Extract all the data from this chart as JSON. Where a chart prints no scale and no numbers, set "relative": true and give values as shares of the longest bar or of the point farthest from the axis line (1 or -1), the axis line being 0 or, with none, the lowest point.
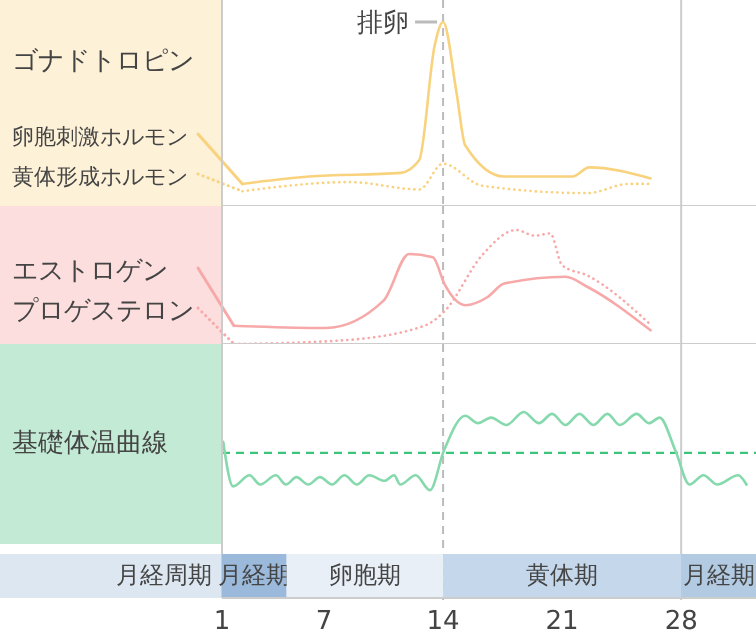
{
  "chart_data": [
    {
      "type": "line",
      "title": "ゴナドトロピン",
      "relative": true,
      "xlim": [
        1,
        32.4
      ],
      "tick_labels": false,
      "legend": "left",
      "marker": "none",
      "series": [
        {
          "name": "卵胞刺激ホルモン",
          "color": "#f9d27e",
          "line_style": "solid",
          "x": [
            2.2,
            6.1,
            11.5,
            12.6,
            13.5,
            14,
            14.8,
            15.3,
            17.6,
            21.6,
            22.6,
            26.2
          ],
          "values": [
            0.12,
            0.16,
            0.18,
            0.25,
            0.87,
            1,
            0.61,
            0.33,
            0.16,
            0.16,
            0.21,
            0.15
          ]
        },
        {
          "name": "黄体形成ホルモン",
          "color": "#f9d27e",
          "line_style": "dotted",
          "x": [
            2.2,
            8.5,
            12.6,
            14,
            16.3,
            22.5,
            24.9,
            26.2
          ],
          "values": [
            0.08,
            0.13,
            0.09,
            0.23,
            0.11,
            0.07,
            0.12,
            0.12
          ]
        }
      ],
      "ref_lines": [
        {
          "axis": "x",
          "value": 14,
          "label": "排卵",
          "color": "#bbbbbb",
          "line_style": "dashed"
        },
        {
          "axis": "x",
          "value": 28,
          "color": "#cccccc",
          "line_style": "solid"
        }
      ]
    },
    {
      "type": "line",
      "relative": true,
      "xlim": [
        1,
        32.4
      ],
      "tick_labels": false,
      "legend": "left",
      "marker": "none",
      "series": [
        {
          "name": "エストロゲン",
          "color": "#f7a9a9",
          "line_style": "solid",
          "x": [
            1.7,
            7.1,
            10.5,
            12,
            13.4,
            14.1,
            15.3,
            16.6,
            17.6,
            21.2,
            22.5,
            26.2
          ],
          "values": [
            0.16,
            0.14,
            0.38,
            0.79,
            0.76,
            0.52,
            0.34,
            0.41,
            0.53,
            0.59,
            0.5,
            0.12
          ]
        },
        {
          "name": "プロゲステロン",
          "color": "#f7a9a9",
          "line_style": "dotted",
          "x": [
            1.7,
            7.9,
            12.9,
            14.1,
            16.3,
            18.3,
            19.4,
            20.3,
            21,
            22.5,
            26.2
          ],
          "values": [
            0,
            0.03,
            0.16,
            0.29,
            0.78,
            1,
            0.95,
            0.97,
            0.69,
            0.6,
            0.17
          ]
        }
      ],
      "ref_lines": [
        {
          "axis": "x",
          "value": 14,
          "color": "#bbbbbb",
          "line_style": "dashed"
        },
        {
          "axis": "x",
          "value": 28,
          "color": "#cccccc",
          "line_style": "solid"
        }
      ]
    },
    {
      "type": "line",
      "title": "基礎体温曲線",
      "xlabel": "月経周期",
      "relative": true,
      "xlim": [
        1,
        32.4
      ],
      "xticks": [
        1,
        7,
        14,
        21,
        28
      ],
      "tick_labels": "x",
      "legend": false,
      "marker": "none",
      "series": [
        {
          "color": "#86d9ad",
          "line_style": "solid",
          "x": [
            1.07,
            1.65,
            2.62,
            3.24,
            4.17,
            4.76,
            5.38,
            6.07,
            6.76,
            7.47,
            8.2,
            8.93,
            9.66,
            10.57,
            11.12,
            11.48,
            12.39,
            13.23,
            14.04,
            15.3,
            16.05,
            16.82,
            17.72,
            18.74,
            19.64,
            20.41,
            21.2,
            22.02,
            22.84,
            23.66,
            24.4,
            25.38,
            26.12,
            26.73,
            27.67,
            28.49,
            29.31,
            30.12,
            31.35,
            31.84
          ],
          "values": [
            0.84,
            0.6,
            0.66,
            0.61,
            0.66,
            0.61,
            0.65,
            0.61,
            0.65,
            0.61,
            0.66,
            0.61,
            0.66,
            0.63,
            0.66,
            0.61,
            0.66,
            0.58,
            0.79,
            0.98,
            0.94,
            0.97,
            0.93,
            1,
            0.94,
            0.99,
            0.93,
            0.99,
            0.93,
            0.99,
            0.93,
            0.99,
            0.94,
            0.97,
            0.79,
            0.61,
            0.66,
            0.61,
            0.66,
            0.61
          ]
        }
      ],
      "ref_lines": [
        {
          "axis": "y",
          "value": 0.78,
          "color": "#3cc47c",
          "line_style": "dashed"
        },
        {
          "axis": "x",
          "value": 14,
          "color": "#bbbbbb",
          "line_style": "dashed"
        },
        {
          "axis": "x",
          "value": 28,
          "color": "#cccccc",
          "line_style": "solid"
        }
      ],
      "bands": [
        {
          "axis": "x",
          "from": 1,
          "to": 4.8,
          "label": "月経期",
          "color": "#9bb9da"
        },
        {
          "axis": "x",
          "from": 4.8,
          "to": 14,
          "label": "卵胞期",
          "color": "#e8eff7"
        },
        {
          "axis": "x",
          "from": 14,
          "to": 28,
          "label": "黄体期",
          "color": "#c5d7eb"
        },
        {
          "axis": "x",
          "from": 28,
          "to": 32.4,
          "label": "月経期",
          "color": "#b3cae3"
        }
      ]
    }
  ]
}
